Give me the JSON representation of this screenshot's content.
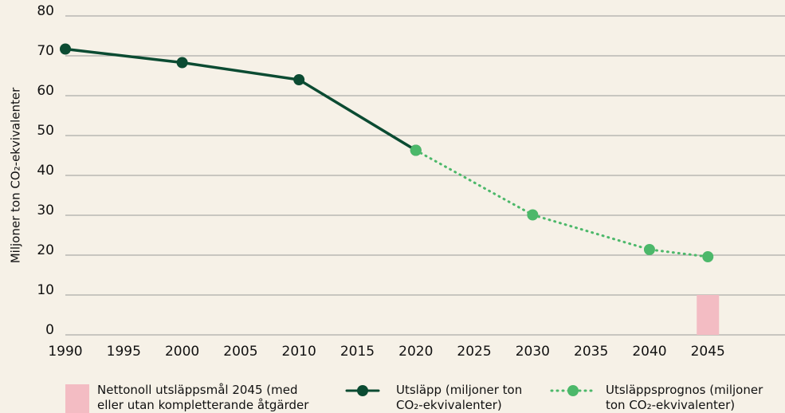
{
  "chart_data": {
    "type": "line",
    "ylabel": "Miljoner ton CO₂-ekvivalenter",
    "xlim": [
      1990,
      2051.6
    ],
    "xticks": [
      1990,
      1995,
      2000,
      2005,
      2010,
      2015,
      2020,
      2025,
      2030,
      2035,
      2040,
      2045
    ],
    "ylim": [
      0,
      80
    ],
    "yticks": [
      0,
      10,
      20,
      30,
      40,
      50,
      60,
      70,
      80
    ],
    "grid": true,
    "legend": "bottom",
    "series": [
      {
        "name": "Nettonoll utsläppsmål 2045 (med eller utan kompletterande åtgärder",
        "color": "#f3bcc3",
        "type": "bar",
        "x": [
          2045
        ],
        "values": [
          10
        ]
      },
      {
        "name": "Utsläpp (miljoner ton CO₂-ekvivalenter)",
        "color": "#0b4b32",
        "type": "line",
        "linestyle": "solid",
        "x": [
          1990,
          2000,
          2010,
          2020
        ],
        "values": [
          71.7,
          68.3,
          64.0,
          46.3
        ]
      },
      {
        "name": "Utsläppsprognos (miljoner ton CO₂-ekvivalenter)",
        "color": "#4cb86a",
        "type": "line",
        "linestyle": "dotted",
        "x": [
          2020,
          2030,
          2040,
          2045
        ],
        "values": [
          46.3,
          30.1,
          21.4,
          19.6
        ]
      }
    ]
  }
}
